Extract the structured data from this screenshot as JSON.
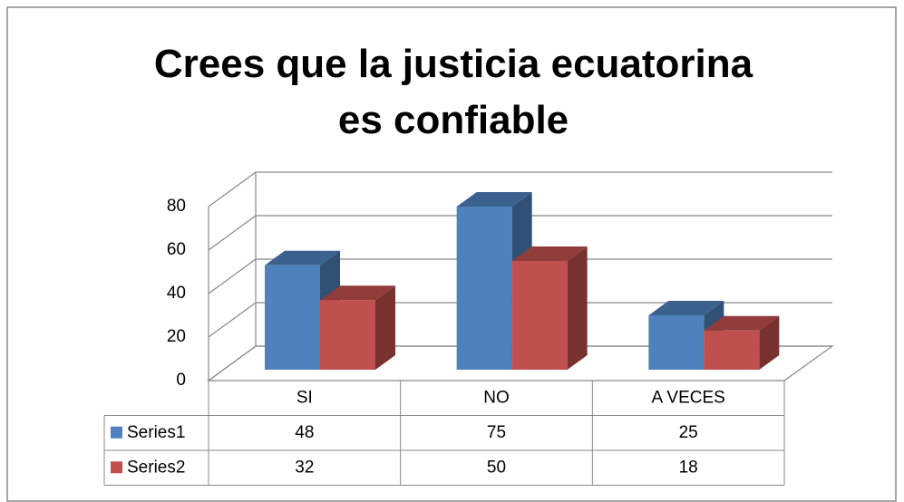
{
  "chart_data": {
    "type": "bar3d",
    "title": "Crees que la justicia ecuatorina es confiable",
    "categories": [
      "SI",
      "NO",
      "A VECES"
    ],
    "series": [
      {
        "name": "Series1",
        "color": "#4f81bd",
        "values": [
          48,
          75,
          25
        ]
      },
      {
        "name": "Series2",
        "color": "#c0504d",
        "values": [
          32,
          50,
          18
        ]
      }
    ],
    "ylim": [
      0,
      80
    ],
    "yticks": [
      0,
      20,
      40,
      60,
      80
    ],
    "grid": true,
    "data_table": true
  }
}
